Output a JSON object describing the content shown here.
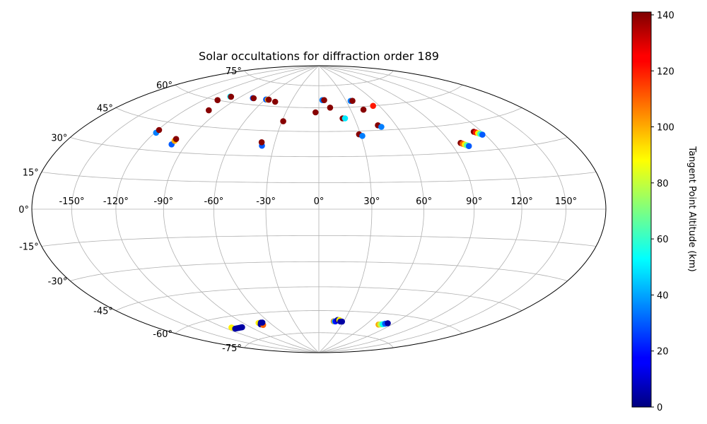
{
  "chart_data": {
    "type": "scatter",
    "projection": "hammer",
    "title": "Solar occultations for diffraction order 189",
    "x_tick_labels": [
      {
        "value": -150,
        "label": "-150°"
      },
      {
        "value": -120,
        "label": "-120°"
      },
      {
        "value": -90,
        "label": "-90°"
      },
      {
        "value": -60,
        "label": "-60°"
      },
      {
        "value": -30,
        "label": "-30°"
      },
      {
        "value": 0,
        "label": "0°"
      },
      {
        "value": 30,
        "label": "30°"
      },
      {
        "value": 60,
        "label": "60°"
      },
      {
        "value": 90,
        "label": "90°"
      },
      {
        "value": 120,
        "label": "120°"
      },
      {
        "value": 150,
        "label": "150°"
      }
    ],
    "y_tick_labels": [
      {
        "value": 75,
        "label": "75°"
      },
      {
        "value": 60,
        "label": "60°"
      },
      {
        "value": 45,
        "label": "45°"
      },
      {
        "value": 30,
        "label": "30°"
      },
      {
        "value": 15,
        "label": "15°"
      },
      {
        "value": 0,
        "label": "0°"
      },
      {
        "value": -15,
        "label": "-15°"
      },
      {
        "value": -30,
        "label": "-30°"
      },
      {
        "value": -45,
        "label": "-45°"
      },
      {
        "value": -60,
        "label": "-60°"
      },
      {
        "value": -75,
        "label": "-75°"
      }
    ],
    "xlim": [
      -180,
      180
    ],
    "ylim": [
      -90,
      90
    ],
    "grid": true,
    "colorbar": {
      "label": "Tangent Point Altitude (km)",
      "colormap": "jet",
      "range": [
        0,
        141
      ],
      "ticks": [
        0,
        20,
        40,
        60,
        80,
        100,
        120,
        140
      ],
      "tick_labels": [
        "0",
        "20",
        "40",
        "60",
        "80",
        "100",
        "120",
        "140"
      ]
    },
    "series": [
      {
        "points": [
          {
            "lon": -119,
            "lat": 39,
            "alt": 35
          },
          {
            "lon": -119,
            "lat": 40.5,
            "alt": 140
          },
          {
            "lon": -107,
            "lat": 60,
            "alt": 140
          },
          {
            "lon": -101,
            "lat": 63,
            "alt": 50
          },
          {
            "lon": -100,
            "lat": 63,
            "alt": 140
          },
          {
            "lon": -100,
            "lat": 54,
            "alt": 140
          },
          {
            "lon": -100,
            "lat": 34,
            "alt": 30
          },
          {
            "lon": -100,
            "lat": 36,
            "alt": 100
          },
          {
            "lon": -100,
            "lat": 37,
            "alt": 140
          },
          {
            "lon": -75,
            "lat": 64,
            "alt": 30
          },
          {
            "lon": -74,
            "lat": 64,
            "alt": 140
          },
          {
            "lon": -59,
            "lat": 64,
            "alt": 30
          },
          {
            "lon": -57,
            "lat": 64,
            "alt": 100
          },
          {
            "lon": -56,
            "lat": 64,
            "alt": 140
          },
          {
            "lon": -47,
            "lat": 63,
            "alt": 140
          },
          {
            "lon": -38,
            "lat": 36,
            "alt": 30
          },
          {
            "lon": -39,
            "lat": 38,
            "alt": 140
          },
          {
            "lon": -29,
            "lat": 51,
            "alt": 140
          },
          {
            "lon": -3,
            "lat": 57,
            "alt": 140
          },
          {
            "lon": 4,
            "lat": 65,
            "alt": 35
          },
          {
            "lon": 6,
            "lat": 65,
            "alt": 140
          },
          {
            "lon": 11,
            "lat": 60,
            "alt": 140
          },
          {
            "lon": 20,
            "lat": 53,
            "alt": 140
          },
          {
            "lon": 22,
            "lat": 53,
            "alt": 50
          },
          {
            "lon": 29,
            "lat": 43,
            "alt": 140
          },
          {
            "lon": 31,
            "lat": 42,
            "alt": 35
          },
          {
            "lon": 35,
            "lat": 64,
            "alt": 35
          },
          {
            "lon": 37,
            "lat": 64,
            "alt": 140
          },
          {
            "lon": 42,
            "lat": 58,
            "alt": 140
          },
          {
            "lon": 46,
            "lat": 48,
            "alt": 140
          },
          {
            "lon": 48,
            "lat": 47,
            "alt": 35
          },
          {
            "lon": 54,
            "lat": 60,
            "alt": 120
          },
          {
            "lon": 97,
            "lat": 35,
            "alt": 140
          },
          {
            "lon": 98,
            "lat": 34.5,
            "alt": 110
          },
          {
            "lon": 99,
            "lat": 34,
            "alt": 90
          },
          {
            "lon": 100,
            "lat": 33.5,
            "alt": 65
          },
          {
            "lon": 101,
            "lat": 33,
            "alt": 30
          },
          {
            "lon": 114,
            "lat": 40,
            "alt": 140
          },
          {
            "lon": 115,
            "lat": 39.5,
            "alt": 120
          },
          {
            "lon": 116,
            "lat": 39,
            "alt": 90
          },
          {
            "lon": 117,
            "lat": 38.5,
            "alt": 60
          },
          {
            "lon": 118,
            "lat": 38,
            "alt": 30
          },
          {
            "lon": -112,
            "lat": -66,
            "alt": 90
          },
          {
            "lon": -111,
            "lat": -67,
            "alt": 5
          },
          {
            "lon": -108,
            "lat": -67,
            "alt": 5
          },
          {
            "lon": -105,
            "lat": -67,
            "alt": 5
          },
          {
            "lon": -102,
            "lat": -67,
            "alt": 5
          },
          {
            "lon": -100,
            "lat": -67,
            "alt": 5
          },
          {
            "lon": -73,
            "lat": -66,
            "alt": 90
          },
          {
            "lon": -73,
            "lat": -67,
            "alt": 5
          },
          {
            "lon": -71,
            "lat": -67.5,
            "alt": 110
          },
          {
            "lon": -70,
            "lat": -66,
            "alt": 5
          },
          {
            "lon": -68,
            "lat": -66,
            "alt": 5
          },
          {
            "lon": 18,
            "lat": -67,
            "alt": 110
          },
          {
            "lon": 19,
            "lat": -67,
            "alt": 60
          },
          {
            "lon": 20,
            "lat": -67,
            "alt": 20
          },
          {
            "lon": 22,
            "lat": -66,
            "alt": 5
          },
          {
            "lon": 24,
            "lat": -66,
            "alt": 90
          },
          {
            "lon": 26,
            "lat": -67,
            "alt": 5
          },
          {
            "lon": 28,
            "lat": -67,
            "alt": 5
          },
          {
            "lon": 75,
            "lat": -67,
            "alt": 100
          },
          {
            "lon": 77,
            "lat": -66.8,
            "alt": 80
          },
          {
            "lon": 79,
            "lat": -66.5,
            "alt": 55
          },
          {
            "lon": 81,
            "lat": -66,
            "alt": 30
          },
          {
            "lon": 83,
            "lat": -65.5,
            "alt": 5
          }
        ]
      }
    ]
  }
}
